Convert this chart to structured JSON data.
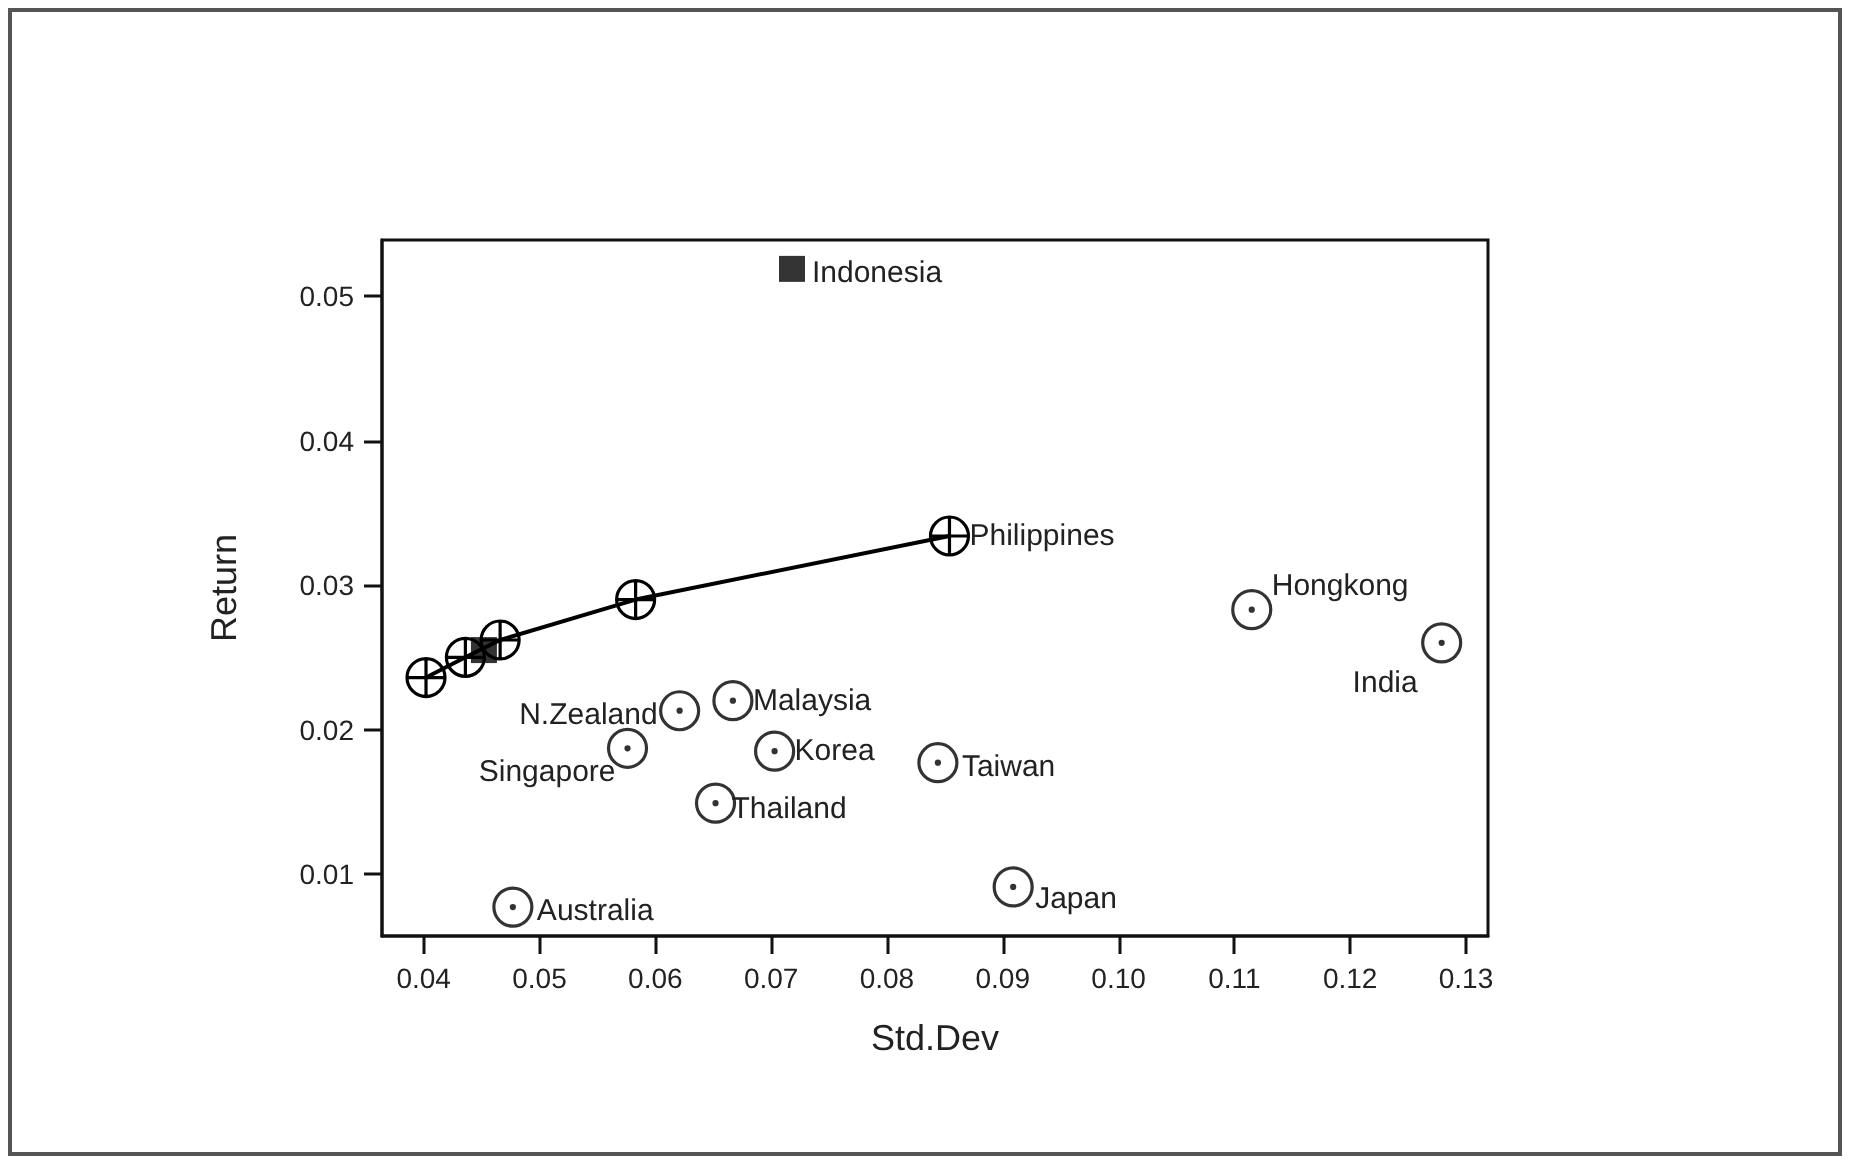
{
  "chart_data": {
    "type": "scatter",
    "xlabel": "Std.Dev",
    "ylabel": "Return",
    "grid": false,
    "xlim": [
      0.0364,
      0.1319
    ],
    "ylim": [
      0.0057,
      0.0539
    ],
    "xticks": [
      0.04,
      0.05,
      0.06,
      0.07,
      0.08,
      0.09,
      {
        "value": 0.1,
        "label": "0.10"
      },
      0.11,
      0.12,
      0.13
    ],
    "yticks": [
      0.01,
      0.02,
      0.03,
      0.04,
      0.05
    ],
    "series": [
      {
        "type": "line",
        "color": "#000000",
        "marker": "cross",
        "line_style": "solid",
        "x": [
          0.0402,
          0.0436,
          0.0466,
          0.0583,
          0.0854
        ],
        "values": [
          0.0236,
          0.025,
          0.0262,
          0.029,
          0.0334
        ]
      },
      {
        "color": "#000000",
        "marker": "square",
        "x": [
          0.0718,
          0.0452
        ],
        "values": [
          0.0519,
          0.0255
        ]
      },
      {
        "color": "#000000",
        "marker": "circle",
        "x": [
          0.0621,
          0.0667,
          0.0576,
          0.0703,
          0.0844,
          0.0652,
          0.0477,
          0.0909,
          0.1115,
          0.1279
        ],
        "values": [
          0.0213,
          0.022,
          0.0187,
          0.0185,
          0.0177,
          0.0149,
          0.0077,
          0.0091,
          0.0283,
          0.026
        ]
      }
    ],
    "annotations": [
      {
        "text": "Indonesia",
        "x": 0.0718,
        "y": 0.0519
      },
      {
        "text": "Philippines",
        "x": 0.0854,
        "y": 0.0334
      },
      {
        "text": "Hongkong",
        "x": 0.1115,
        "y": 0.0283
      },
      {
        "text": "India",
        "x": 0.1279,
        "y": 0.026
      },
      {
        "text": "N.Zealand",
        "x": 0.0621,
        "y": 0.0213
      },
      {
        "text": "Malaysia",
        "x": 0.0667,
        "y": 0.022
      },
      {
        "text": "Singapore",
        "x": 0.0576,
        "y": 0.0187
      },
      {
        "text": "Korea",
        "x": 0.0703,
        "y": 0.0185
      },
      {
        "text": "Taiwan",
        "x": 0.0844,
        "y": 0.0177
      },
      {
        "text": "Thailand",
        "x": 0.0652,
        "y": 0.0149
      },
      {
        "text": "Australia",
        "x": 0.0477,
        "y": 0.0077
      },
      {
        "text": "Japan",
        "x": 0.0909,
        "y": 0.0091
      }
    ]
  }
}
